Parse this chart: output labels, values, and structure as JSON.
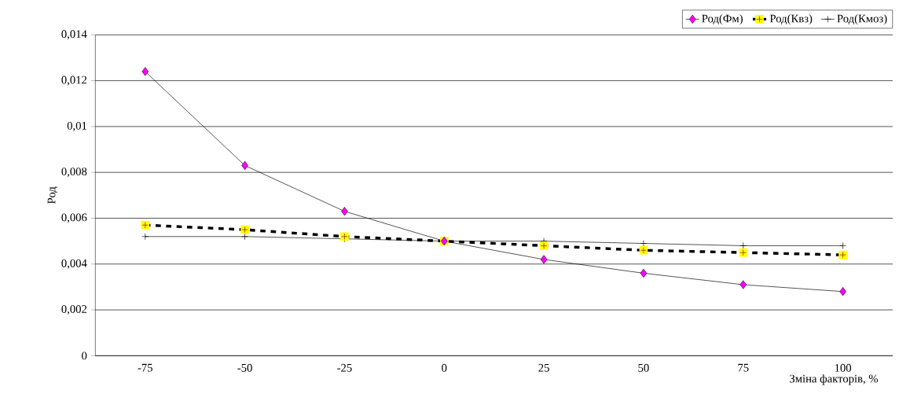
{
  "chart_data": {
    "type": "line",
    "xlabel": "Зміна факторів, %",
    "ylabel": "Род",
    "categories": [
      "-75",
      "-50",
      "-25",
      "0",
      "25",
      "50",
      "75",
      "100"
    ],
    "series": [
      {
        "name": "Род(Фм)",
        "color": "#ff00ff",
        "marker": "diamond",
        "line_style": "solid",
        "values": [
          0.0124,
          0.0083,
          0.0063,
          0.005,
          0.0042,
          0.0036,
          0.0031,
          0.0028
        ]
      },
      {
        "name": "Род(Квз)",
        "color": "#ffff00",
        "marker": "square",
        "line_style": "dashed",
        "values": [
          0.0057,
          0.0055,
          0.0052,
          0.005,
          0.0048,
          0.0046,
          0.0045,
          0.0044
        ]
      },
      {
        "name": "Род(Кмоз)",
        "color": "#000000",
        "marker": "cross",
        "line_style": "solid",
        "values": [
          0.0052,
          0.0052,
          0.0051,
          0.005,
          0.005,
          0.0049,
          0.0048,
          0.0048
        ]
      }
    ],
    "ylim": [
      0,
      0.014
    ],
    "yticks": [
      {
        "value": 0,
        "label": "0"
      },
      {
        "value": 0.002,
        "label": "0,002"
      },
      {
        "value": 0.004,
        "label": "0,004"
      },
      {
        "value": 0.006,
        "label": "0,006"
      },
      {
        "value": 0.008,
        "label": "0,008"
      },
      {
        "value": 0.01,
        "label": "0,01"
      },
      {
        "value": 0.012,
        "label": "0,012"
      },
      {
        "value": 0.014,
        "label": "0,014"
      }
    ],
    "grid": "y",
    "legend": "top right"
  }
}
